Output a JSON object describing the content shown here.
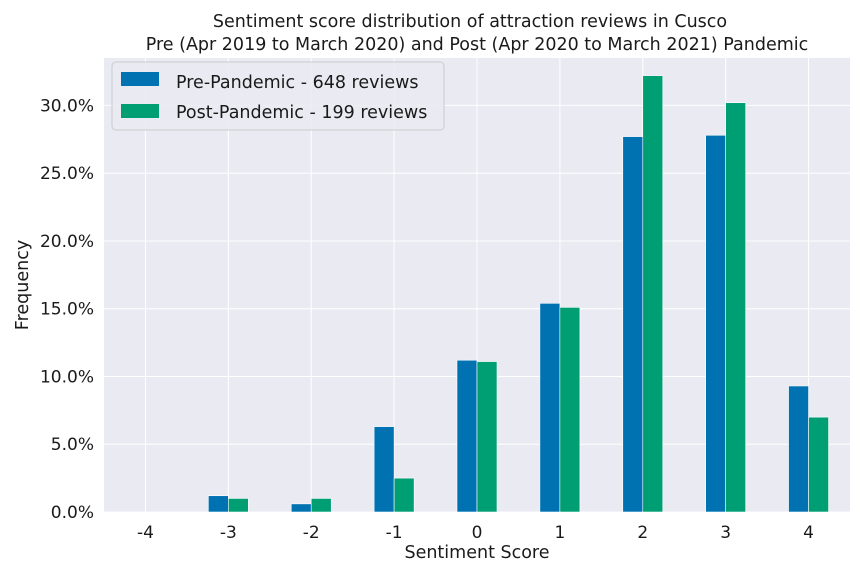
{
  "chart_data": {
    "type": "bar",
    "title": "Sentiment score distribution of attraction reviews in Cusco",
    "subtitle": "Pre (Apr 2019 to March 2020) and Post (Apr 2020 to March 2021) Pandemic",
    "xlabel": "Sentiment Score",
    "ylabel": "Frequency",
    "categories": [
      "-4",
      "-3",
      "-2",
      "-1",
      "0",
      "1",
      "2",
      "3",
      "4"
    ],
    "series": [
      {
        "name": "Pre-Pandemic - 648 reviews",
        "color": "#0072b2",
        "values": [
          0.0,
          1.2,
          0.6,
          6.3,
          11.2,
          15.4,
          27.7,
          27.8,
          9.3
        ]
      },
      {
        "name": "Post-Pandemic - 199 reviews",
        "color": "#009e73",
        "values": [
          0.0,
          1.0,
          1.0,
          2.5,
          11.1,
          15.1,
          32.2,
          30.2,
          7.0
        ]
      }
    ],
    "ylim": [
      0,
      33.5
    ],
    "yticks": [
      0,
      5,
      10,
      15,
      20,
      25,
      30
    ],
    "ytick_labels": [
      "0.0%",
      "5.0%",
      "10.0%",
      "15.0%",
      "20.0%",
      "25.0%",
      "30.0%"
    ],
    "grid": true,
    "legend_position": "top-left",
    "background_color": "#eaeaf2"
  }
}
